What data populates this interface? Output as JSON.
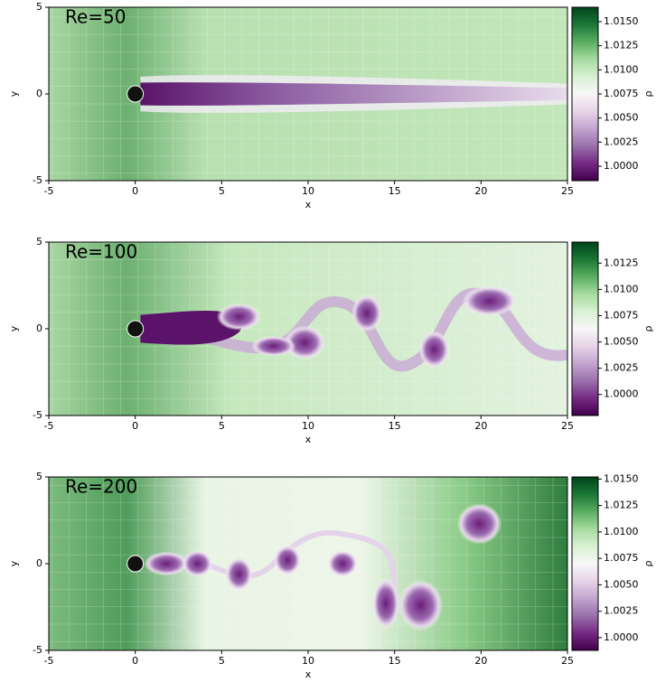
{
  "chart_data": [
    {
      "type": "heatmap",
      "title": "Re=50",
      "x_label": "x",
      "y_label": "y",
      "xlim": [
        -5,
        25
      ],
      "ylim": [
        -5,
        5
      ],
      "xticks": [
        -5,
        0,
        5,
        10,
        15,
        20,
        25
      ],
      "yticks": [
        -5,
        0,
        5
      ],
      "colorbar": {
        "label": "ρ",
        "colormap": "PRGn",
        "clim": [
          0.9985,
          1.0165
        ],
        "ticks": [
          {
            "value": 1,
            "label": "1.0000"
          },
          {
            "value": 1.0025,
            "label": "1.0025"
          },
          {
            "value": 1.005,
            "label": "1.0050"
          },
          {
            "value": 1.0075,
            "label": "1.0075"
          },
          {
            "value": 1.01,
            "label": "1.0100"
          },
          {
            "value": 1.0125,
            "label": "1.0125"
          },
          {
            "value": 1.015,
            "label": "1.0150"
          }
        ]
      }
    },
    {
      "type": "heatmap",
      "title": "Re=100",
      "x_label": "x",
      "y_label": "y",
      "xlim": [
        -5,
        25
      ],
      "ylim": [
        -5,
        5
      ],
      "xticks": [
        -5,
        0,
        5,
        10,
        15,
        20,
        25
      ],
      "yticks": [
        -5,
        0,
        5
      ],
      "colorbar": {
        "label": "ρ",
        "colormap": "PRGn",
        "clim": [
          0.998,
          1.0145
        ],
        "ticks": [
          {
            "value": 1,
            "label": "1.0000"
          },
          {
            "value": 1.0025,
            "label": "1.0025"
          },
          {
            "value": 1.005,
            "label": "1.0050"
          },
          {
            "value": 1.0075,
            "label": "1.0075"
          },
          {
            "value": 1.01,
            "label": "1.0100"
          },
          {
            "value": 1.0125,
            "label": "1.0125"
          }
        ]
      }
    },
    {
      "type": "heatmap",
      "title": "Re=200",
      "x_label": "x",
      "y_label": "y",
      "xlim": [
        -5,
        25
      ],
      "ylim": [
        -5,
        5
      ],
      "xticks": [
        -5,
        0,
        5,
        10,
        15,
        20,
        25
      ],
      "yticks": [
        -5,
        0,
        5
      ],
      "colorbar": {
        "label": "ρ",
        "colormap": "PRGn",
        "clim": [
          0.9988,
          1.0152
        ],
        "ticks": [
          {
            "value": 1,
            "label": "1.0000"
          },
          {
            "value": 1.0025,
            "label": "1.0025"
          },
          {
            "value": 1.005,
            "label": "1.0050"
          },
          {
            "value": 1.0075,
            "label": "1.0075"
          },
          {
            "value": 1.01,
            "label": "1.0100"
          },
          {
            "value": 1.0125,
            "label": "1.0125"
          },
          {
            "value": 1.015,
            "label": "1.0150"
          }
        ]
      }
    }
  ]
}
